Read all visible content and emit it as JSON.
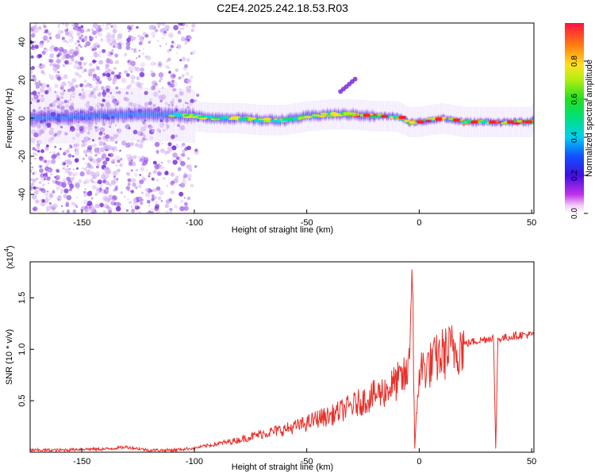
{
  "title": "C2E4.2025.242.18.53.R03",
  "chart_data": [
    {
      "type": "heatmap",
      "xlabel": "Height of straight line (km)",
      "ylabel": "Frequency (Hz)",
      "xlim": [
        -173,
        51
      ],
      "ylim": [
        -50,
        50
      ],
      "xticks": [
        -150,
        -100,
        -50,
        0,
        50
      ],
      "yticks": [
        -40,
        -20,
        0,
        20,
        40
      ],
      "colorbar": {
        "label": "Normalized spectral amplitude",
        "range": [
          0.0,
          1.0
        ],
        "ticks": [
          0.0,
          0.2,
          0.4,
          0.6,
          0.8
        ]
      },
      "signal_center_hz": [
        [
          -173,
          0
        ],
        [
          -150,
          1
        ],
        [
          -130,
          2
        ],
        [
          -110,
          2
        ],
        [
          -100,
          1
        ],
        [
          -90,
          0
        ],
        [
          -80,
          0
        ],
        [
          -70,
          -1
        ],
        [
          -60,
          -1
        ],
        [
          -50,
          1
        ],
        [
          -40,
          2
        ],
        [
          -30,
          2
        ],
        [
          -20,
          1
        ],
        [
          -10,
          1
        ],
        [
          -5,
          -2
        ],
        [
          0,
          -2
        ],
        [
          10,
          0
        ],
        [
          20,
          -2
        ],
        [
          30,
          -2
        ],
        [
          40,
          -2
        ],
        [
          50,
          -2
        ]
      ]
    },
    {
      "type": "line",
      "xlabel": "Height of straight line (km)",
      "ylabel": "SNR (10 * v/v)",
      "multiplier": "(x10",
      "multiplier_exp": "4",
      "xlim": [
        -173,
        51
      ],
      "ylim": [
        0,
        1.85
      ],
      "xticks": [
        -150,
        -100,
        -50,
        0,
        50
      ],
      "yticks": [
        0.5,
        1.0,
        1.5
      ],
      "line_color": "#e8302a",
      "series": [
        {
          "x": [
            -173,
            -160,
            -150,
            -140,
            -130,
            -120,
            -110,
            -100,
            -95,
            -90,
            -85,
            -80,
            -75,
            -70,
            -65,
            -60,
            -55,
            -50,
            -45,
            -40,
            -35,
            -30,
            -25,
            -20,
            -15,
            -10,
            -5,
            -3,
            -2,
            0,
            5,
            10,
            15,
            20,
            25,
            30,
            33,
            34,
            35,
            40,
            45,
            50
          ],
          "y": [
            0.02,
            0.02,
            0.03,
            0.03,
            0.05,
            0.02,
            0.02,
            0.04,
            0.06,
            0.08,
            0.1,
            0.12,
            0.15,
            0.18,
            0.2,
            0.22,
            0.25,
            0.28,
            0.33,
            0.35,
            0.4,
            0.45,
            0.5,
            0.55,
            0.6,
            0.68,
            0.75,
            1.82,
            0.03,
            0.8,
            0.85,
            0.95,
            1.0,
            1.05,
            1.08,
            1.1,
            1.12,
            0.02,
            1.1,
            1.12,
            1.14,
            1.14
          ]
        }
      ]
    }
  ]
}
